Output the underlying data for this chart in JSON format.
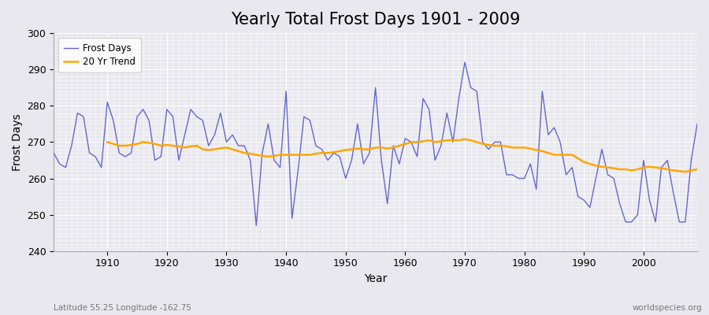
{
  "title": "Yearly Total Frost Days 1901 - 2009",
  "xlabel": "Year",
  "ylabel": "Frost Days",
  "subtitle": "Latitude 55.25 Longitude -162.75",
  "watermark": "worldspecies.org",
  "years": [
    1901,
    1902,
    1903,
    1904,
    1905,
    1906,
    1907,
    1908,
    1909,
    1910,
    1911,
    1912,
    1913,
    1914,
    1915,
    1916,
    1917,
    1918,
    1919,
    1920,
    1921,
    1922,
    1923,
    1924,
    1925,
    1926,
    1927,
    1928,
    1929,
    1930,
    1931,
    1932,
    1933,
    1934,
    1935,
    1936,
    1937,
    1938,
    1939,
    1940,
    1941,
    1942,
    1943,
    1944,
    1945,
    1946,
    1947,
    1948,
    1949,
    1950,
    1951,
    1952,
    1953,
    1954,
    1955,
    1956,
    1957,
    1958,
    1959,
    1960,
    1961,
    1962,
    1963,
    1964,
    1965,
    1966,
    1967,
    1968,
    1969,
    1970,
    1971,
    1972,
    1973,
    1974,
    1975,
    1976,
    1977,
    1978,
    1979,
    1980,
    1981,
    1982,
    1983,
    1984,
    1985,
    1986,
    1987,
    1988,
    1989,
    1990,
    1991,
    1992,
    1993,
    1994,
    1995,
    1996,
    1997,
    1998,
    1999,
    2000,
    2001,
    2002,
    2003,
    2004,
    2005,
    2006,
    2007,
    2008,
    2009
  ],
  "frost_days": [
    267,
    264,
    263,
    269,
    278,
    277,
    267,
    266,
    263,
    281,
    276,
    267,
    266,
    267,
    277,
    279,
    276,
    265,
    266,
    279,
    277,
    265,
    272,
    279,
    277,
    276,
    269,
    272,
    278,
    270,
    272,
    269,
    269,
    265,
    247,
    267,
    275,
    265,
    263,
    284,
    249,
    262,
    277,
    276,
    269,
    268,
    265,
    267,
    266,
    260,
    265,
    275,
    264,
    267,
    285,
    265,
    253,
    269,
    264,
    271,
    270,
    266,
    282,
    279,
    265,
    269,
    278,
    270,
    282,
    292,
    285,
    284,
    270,
    268,
    270,
    270,
    261,
    261,
    260,
    260,
    264,
    257,
    284,
    272,
    274,
    270,
    261,
    263,
    255,
    254,
    252,
    260,
    268,
    261,
    260,
    253,
    248,
    248,
    250,
    265,
    254,
    248,
    263,
    265,
    256,
    248,
    248,
    265,
    275
  ],
  "trend_values": [
    null,
    null,
    null,
    null,
    null,
    null,
    null,
    null,
    null,
    270.0,
    269.5,
    269.0,
    269.0,
    269.2,
    269.5,
    270.0,
    269.8,
    269.5,
    269.0,
    269.2,
    269.0,
    268.8,
    268.5,
    268.8,
    269.0,
    268.0,
    267.8,
    268.0,
    268.3,
    268.5,
    268.0,
    267.5,
    267.0,
    266.8,
    266.5,
    266.2,
    266.0,
    266.2,
    266.5,
    266.5,
    266.5,
    266.5,
    266.5,
    266.5,
    266.8,
    267.0,
    267.0,
    267.2,
    267.5,
    267.8,
    268.0,
    268.2,
    268.0,
    268.0,
    268.5,
    268.5,
    268.2,
    268.5,
    269.0,
    269.5,
    270.0,
    270.0,
    270.2,
    270.5,
    270.0,
    270.2,
    270.5,
    270.5,
    270.5,
    270.8,
    270.5,
    270.0,
    269.5,
    269.2,
    269.0,
    269.0,
    268.8,
    268.5,
    268.5,
    268.5,
    268.2,
    267.8,
    267.5,
    267.0,
    266.5,
    266.5,
    266.5,
    266.5,
    265.5,
    264.5,
    264.0,
    263.5,
    263.2,
    263.0,
    262.8,
    262.5,
    262.5,
    262.2,
    262.5,
    263.0,
    263.2,
    263.0,
    262.8,
    262.5,
    262.2,
    262.0,
    261.8,
    262.2,
    262.5
  ],
  "frost_color": "#6666cc",
  "trend_color": "#ffa500",
  "bg_color": "#e8e8ee",
  "plot_bg_color": "#e8e8ee",
  "ylim": [
    240,
    300
  ],
  "yticks": [
    240,
    250,
    260,
    270,
    280,
    290,
    300
  ],
  "grid_color": "#ffffff",
  "title_fontsize": 15,
  "label_fontsize": 10,
  "tick_fontsize": 9
}
